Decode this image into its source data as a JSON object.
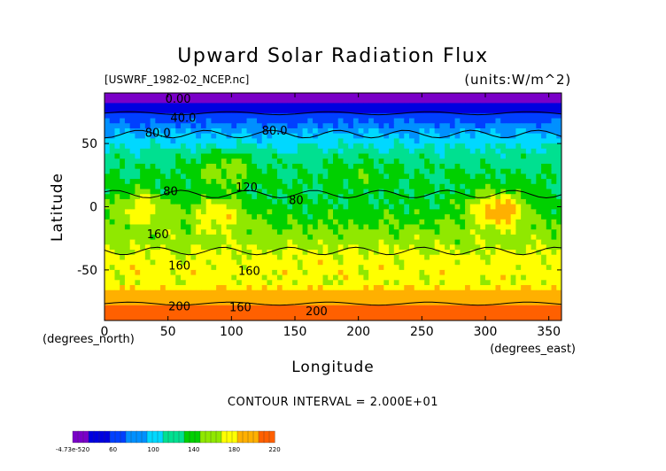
{
  "chart_data": {
    "type": "heatmap",
    "title": "Upward Solar Radiation Flux",
    "file_label": "[USWRF_1982-02_NCEP.nc]",
    "units_label": "(units:W/m^2)",
    "xlabel": "Longitude",
    "ylabel": "Latitude",
    "x_unit_label": "(degrees_east)",
    "y_unit_label": "(degrees_north)",
    "xlim": [
      0,
      360
    ],
    "ylim": [
      -90,
      90
    ],
    "x_ticks": [
      0,
      50,
      100,
      150,
      200,
      250,
      300,
      350
    ],
    "y_ticks": [
      -50,
      0,
      50
    ],
    "contour_interval_text": "CONTOUR INTERVAL = 2.000E+01",
    "contour_labels": [
      {
        "text": "0.00",
        "lon": 58,
        "lat": 85
      },
      {
        "text": "40.0",
        "lon": 62,
        "lat": 70
      },
      {
        "text": "80.0",
        "lon": 42,
        "lat": 58
      },
      {
        "text": "80.0",
        "lon": 134,
        "lat": 60
      },
      {
        "text": "80",
        "lon": 52,
        "lat": 12
      },
      {
        "text": "120",
        "lon": 112,
        "lat": 15
      },
      {
        "text": "160",
        "lon": 42,
        "lat": -22
      },
      {
        "text": "160",
        "lon": 59,
        "lat": -47
      },
      {
        "text": "160",
        "lon": 114,
        "lat": -51
      },
      {
        "text": "160",
        "lon": 107,
        "lat": -80
      },
      {
        "text": "200",
        "lon": 59,
        "lat": -79
      },
      {
        "text": "200",
        "lon": 167,
        "lat": -83
      },
      {
        "text": "80",
        "lon": 151,
        "lat": 5
      }
    ],
    "colorbar": {
      "tick_labels": [
        "-4.73e-520",
        "60",
        "100",
        "140",
        "180",
        "220"
      ],
      "levels": [
        0,
        20,
        40,
        60,
        80,
        100,
        120,
        140,
        160,
        180,
        200,
        220
      ],
      "colors": [
        "#7a00c8",
        "#0000e0",
        "#0040ff",
        "#0090ff",
        "#00d8ff",
        "#00e090",
        "#00d000",
        "#90e800",
        "#ffff00",
        "#ffb000",
        "#ff6000",
        "#f02020"
      ]
    },
    "zonal_profile": [
      {
        "lat": 90,
        "value": 5
      },
      {
        "lat": 80,
        "value": 25
      },
      {
        "lat": 70,
        "value": 50
      },
      {
        "lat": 60,
        "value": 75
      },
      {
        "lat": 50,
        "value": 95
      },
      {
        "lat": 40,
        "value": 110
      },
      {
        "lat": 30,
        "value": 118
      },
      {
        "lat": 20,
        "value": 122
      },
      {
        "lat": 10,
        "value": 120
      },
      {
        "lat": 0,
        "value": 125
      },
      {
        "lat": -10,
        "value": 135
      },
      {
        "lat": -20,
        "value": 145
      },
      {
        "lat": -30,
        "value": 155
      },
      {
        "lat": -40,
        "value": 165
      },
      {
        "lat": -50,
        "value": 170
      },
      {
        "lat": -60,
        "value": 165
      },
      {
        "lat": -70,
        "value": 190
      },
      {
        "lat": -80,
        "value": 205
      },
      {
        "lat": -90,
        "value": 210
      }
    ],
    "regional_highs": [
      {
        "lon": 30,
        "lat": 0,
        "value": 170
      },
      {
        "lon": 90,
        "lat": -5,
        "value": 175
      },
      {
        "lon": 310,
        "lat": -2,
        "value": 195
      },
      {
        "lon": 95,
        "lat": 30,
        "value": 150
      },
      {
        "lon": 200,
        "lat": 25,
        "value": 135
      }
    ]
  }
}
